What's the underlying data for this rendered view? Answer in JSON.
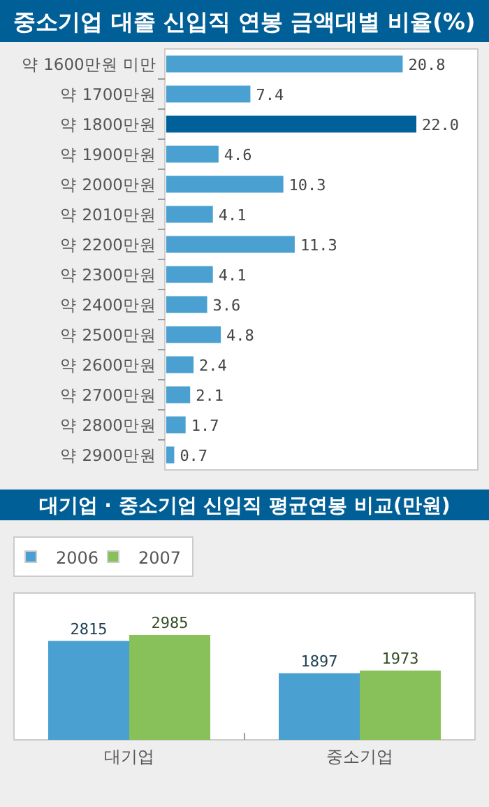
{
  "chart_data": [
    {
      "type": "bar",
      "orientation": "horizontal",
      "title": "중소기업 대졸 신입직 연봉 금액대별 비율(%)",
      "categories": [
        "약 1600만원 미만",
        "약 1700만원",
        "약 1800만원",
        "약 1900만원",
        "약 2000만원",
        "약 2010만원",
        "약 2200만원",
        "약 2300만원",
        "약 2400만원",
        "약 2500만원",
        "약 2600만원",
        "약 2700만원",
        "약 2800만원",
        "약 2900만원"
      ],
      "values": [
        20.8,
        7.4,
        22.0,
        4.6,
        10.3,
        4.1,
        11.3,
        4.1,
        3.6,
        4.8,
        2.4,
        2.1,
        1.7,
        0.7
      ],
      "value_labels": [
        "20.8",
        "7.4",
        "22.0",
        "4.6",
        "10.3",
        "4.1",
        "11.3",
        "4.1",
        "3.6",
        "4.8",
        "2.4",
        "2.1",
        "1.7",
        "0.7"
      ],
      "colors": [
        "#4aa0d0",
        "#4aa0d0",
        "#00609a",
        "#4aa0d0",
        "#4aa0d0",
        "#4aa0d0",
        "#4aa0d0",
        "#4aa0d0",
        "#4aa0d0",
        "#4aa0d0",
        "#4aa0d0",
        "#4aa0d0",
        "#4aa0d0",
        "#4aa0d0"
      ]
    },
    {
      "type": "bar",
      "title": "대기업 · 중소기업 신입직 평균연봉 비교(만원)",
      "categories": [
        "대기업",
        "중소기업"
      ],
      "series": [
        {
          "name": "2006",
          "color": "#4aa0d0",
          "values": [
            2815,
            1897
          ]
        },
        {
          "name": "2007",
          "color": "#88c05a",
          "values": [
            2985,
            1973
          ]
        }
      ],
      "data_labels": true,
      "legend": "top left"
    }
  ]
}
